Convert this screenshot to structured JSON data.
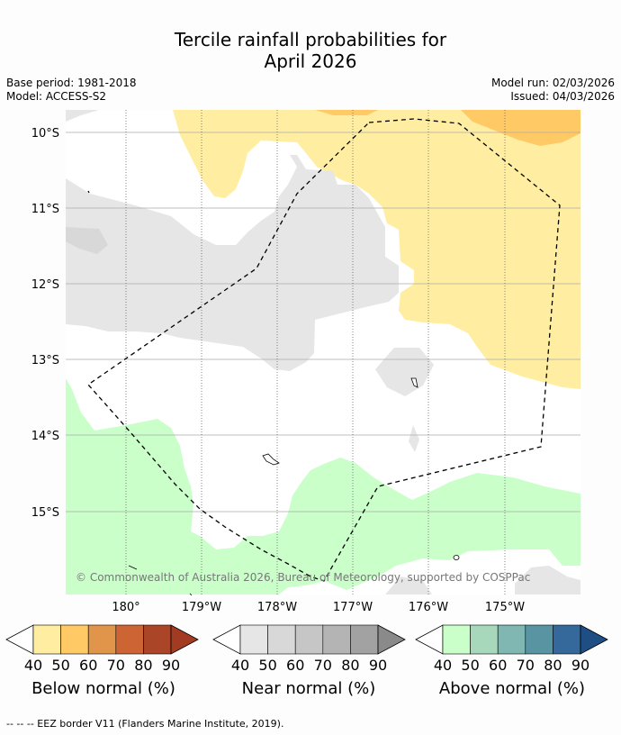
{
  "header": {
    "title_line1": "Tercile rainfall probabilities for",
    "title_line2": "April 2026",
    "base_period": "Base period: 1981-2018",
    "model": "Model: ACCESS-S2",
    "model_run": "Model run: 02/03/2026",
    "issued": "Issued: 04/03/2026"
  },
  "map": {
    "lat_labels": [
      "10°S",
      "11°S",
      "12°S",
      "13°S",
      "14°S",
      "15°S"
    ],
    "lon_labels": [
      "180°",
      "179°W",
      "178°W",
      "177°W",
      "176°W",
      "175°W"
    ],
    "copyright": "© Commonwealth of Australia 2026, Bureau of Meteorology, supported by COSPPac"
  },
  "legends": [
    {
      "label": "Below normal (%)",
      "ticks": [
        "40",
        "50",
        "60",
        "70",
        "80",
        "90"
      ],
      "colors": [
        "#ffeea1",
        "#ffc965",
        "#e0954a",
        "#cd6434",
        "#ab4527",
        "#a23b22"
      ]
    },
    {
      "label": "Near normal (%)",
      "ticks": [
        "40",
        "50",
        "60",
        "70",
        "80",
        "90"
      ],
      "colors": [
        "#e6e6e6",
        "#d8d8d8",
        "#c6c6c6",
        "#b4b4b4",
        "#a2a2a2",
        "#8a8a8a"
      ]
    },
    {
      "label": "Above normal (%)",
      "ticks": [
        "40",
        "50",
        "60",
        "70",
        "80",
        "90"
      ],
      "colors": [
        "#caffca",
        "#a7d8bc",
        "#80b7b2",
        "#5994a3",
        "#35689b",
        "#1f4e85"
      ]
    }
  ],
  "colors": {
    "below_40": "#ffeea1",
    "below_50": "#ffc965",
    "near_40": "#e6e6e6",
    "above_40": "#caffca"
  },
  "footnote": "--  --  -- EEZ border V11 (Flanders Marine Institute, 2019)."
}
